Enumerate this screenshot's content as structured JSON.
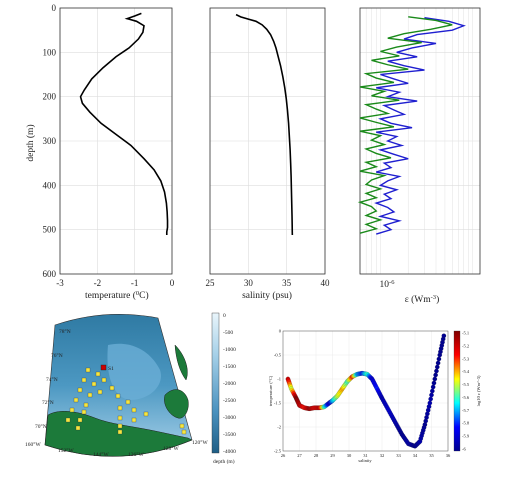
{
  "chart_data": [
    {
      "type": "line",
      "xlabel": "temperature (",
      "xlabel_unit": "C)",
      "ylabel": "depth (m)",
      "xlim": [
        -3,
        0
      ],
      "ylim": [
        0,
        600
      ],
      "x_ticks": [
        "-3",
        "-2",
        "-1",
        "0"
      ],
      "y_ticks": [
        "0",
        "100",
        "200",
        "300",
        "400",
        "500",
        "600"
      ],
      "grid": true,
      "series": [
        {
          "color": "#000000",
          "x": [
            -0.82,
            -1.0,
            -1.2,
            -0.95,
            -0.75,
            -0.78,
            -0.9,
            -1.15,
            -1.5,
            -1.85,
            -2.15,
            -2.35,
            -2.45,
            -2.4,
            -2.2,
            -1.9,
            -1.5,
            -1.1,
            -0.75,
            -0.48,
            -0.3,
            -0.2,
            -0.15,
            -0.13,
            -0.12,
            -0.12,
            -0.14,
            -0.14
          ],
          "y": [
            12,
            18,
            24,
            30,
            40,
            55,
            70,
            90,
            110,
            135,
            160,
            185,
            200,
            215,
            235,
            260,
            285,
            310,
            340,
            365,
            390,
            415,
            440,
            460,
            480,
            495,
            505,
            512
          ]
        }
      ]
    },
    {
      "type": "line",
      "xlabel": "salinity (psu)",
      "xlim": [
        25,
        40
      ],
      "ylim": [
        0,
        600
      ],
      "x_ticks": [
        "25",
        "30",
        "35",
        "40"
      ],
      "grid": true,
      "series": [
        {
          "color": "#000000",
          "x": [
            28.4,
            29.0,
            30.0,
            31.0,
            31.8,
            32.4,
            32.9,
            33.3,
            33.6,
            33.9,
            34.2,
            34.5,
            34.75,
            34.95,
            35.1,
            35.25,
            35.35,
            35.45,
            35.52,
            35.58,
            35.62,
            35.66,
            35.7,
            35.72,
            35.73,
            35.74
          ],
          "y": [
            15,
            20,
            25,
            30,
            38,
            48,
            60,
            75,
            90,
            110,
            130,
            155,
            180,
            205,
            230,
            260,
            290,
            320,
            350,
            380,
            410,
            440,
            470,
            490,
            505,
            512
          ]
        }
      ]
    },
    {
      "type": "line",
      "xlabel": "ε (Wm",
      "xlabel_sup": "-3",
      "xlabel_end": ")",
      "x_tick_label": "10",
      "x_tick_sup": "-6",
      "xscale": "log",
      "ylim": [
        0,
        600
      ],
      "grid": true,
      "series": [
        {
          "color": "#1f1fd0",
          "x": [
            30,
            55,
            80,
            60,
            25,
            18,
            40,
            22,
            15,
            25,
            12,
            18,
            30,
            10,
            14,
            20,
            9,
            16,
            12,
            25,
            11,
            14,
            18,
            10,
            13,
            22,
            9,
            15,
            12,
            17,
            10,
            14,
            20,
            11,
            13,
            9,
            16,
            12,
            10,
            15,
            11,
            13,
            9,
            12,
            14,
            10,
            16,
            11,
            13,
            9
          ],
          "y": [
            22,
            30,
            40,
            50,
            60,
            70,
            80,
            90,
            100,
            110,
            120,
            130,
            140,
            150,
            160,
            170,
            180,
            190,
            200,
            210,
            220,
            230,
            240,
            250,
            260,
            270,
            280,
            290,
            300,
            310,
            320,
            330,
            340,
            350,
            360,
            370,
            380,
            390,
            400,
            410,
            420,
            430,
            440,
            450,
            460,
            470,
            480,
            490,
            500,
            510
          ]
        },
        {
          "color": "#1a8a1a",
          "x": [
            20,
            40,
            60,
            35,
            18,
            12,
            28,
            15,
            10,
            16,
            8,
            12,
            20,
            7,
            9,
            14,
            6,
            11,
            8,
            16,
            7,
            9,
            12,
            6,
            9,
            14,
            6,
            10,
            8,
            11,
            7,
            9,
            13,
            7,
            9,
            6,
            11,
            8,
            7,
            10,
            7,
            9,
            6,
            8,
            9,
            7,
            10,
            7,
            9,
            6
          ],
          "y": [
            20,
            28,
            38,
            48,
            58,
            68,
            78,
            88,
            98,
            108,
            118,
            128,
            138,
            148,
            158,
            168,
            178,
            188,
            198,
            208,
            218,
            228,
            238,
            248,
            258,
            268,
            278,
            288,
            298,
            308,
            318,
            328,
            338,
            348,
            358,
            368,
            378,
            388,
            398,
            408,
            418,
            428,
            438,
            448,
            458,
            468,
            478,
            488,
            498,
            508
          ]
        }
      ]
    },
    {
      "type": "map",
      "lat_labels": [
        "78°N",
        "76°N",
        "74°N",
        "72°N",
        "70°N"
      ],
      "lon_labels": [
        "160°W",
        "152°W",
        "144°W",
        "136°W",
        "128°W",
        "120°W"
      ],
      "highlight_label": "S1",
      "colorbar_label": "depth (m)",
      "colorbar_ticks": [
        "0",
        "-500",
        "-1000",
        "-1500",
        "-2000",
        "-2500",
        "-3000",
        "-3500",
        "-4000"
      ],
      "station_color": "#f5e640",
      "highlight_color": "#cc0000"
    },
    {
      "type": "scatter",
      "xlabel": "salinity",
      "ylabel": "temperature (°C)",
      "xlim": [
        26,
        36
      ],
      "ylim": [
        -2.5,
        0
      ],
      "x_ticks": [
        "26",
        "27",
        "28",
        "29",
        "30",
        "31",
        "32",
        "33",
        "34",
        "35",
        "36"
      ],
      "y_ticks": [
        "0",
        "-0.5",
        "-1",
        "-1.5",
        "-2",
        "-2.5"
      ],
      "colorbar_label": "log10 ε (Wm^-3)",
      "colorbar_ticks": [
        "-5.1",
        "-5.2",
        "-5.3",
        "-5.4",
        "-5.5",
        "-5.6",
        "-5.7",
        "-5.8",
        "-5.9",
        "-6"
      ],
      "points": [
        {
          "x": 26.3,
          "y": -1.0,
          "c": -5.2
        },
        {
          "x": 26.5,
          "y": -1.2,
          "c": -5.5
        },
        {
          "x": 26.8,
          "y": -1.4,
          "c": -5.1
        },
        {
          "x": 27.0,
          "y": -1.55,
          "c": -5.2
        },
        {
          "x": 27.3,
          "y": -1.6,
          "c": -5.3
        },
        {
          "x": 27.6,
          "y": -1.62,
          "c": -5.15
        },
        {
          "x": 27.9,
          "y": -1.6,
          "c": -5.25
        },
        {
          "x": 28.2,
          "y": -1.6,
          "c": -5.2
        },
        {
          "x": 28.5,
          "y": -1.58,
          "c": -5.6
        },
        {
          "x": 28.8,
          "y": -1.5,
          "c": -5.9
        },
        {
          "x": 29.0,
          "y": -1.45,
          "c": -5.7
        },
        {
          "x": 29.3,
          "y": -1.35,
          "c": -5.5
        },
        {
          "x": 29.6,
          "y": -1.2,
          "c": -5.4
        },
        {
          "x": 29.9,
          "y": -1.05,
          "c": -5.6
        },
        {
          "x": 30.2,
          "y": -0.95,
          "c": -5.3
        },
        {
          "x": 30.5,
          "y": -0.9,
          "c": -5.7
        },
        {
          "x": 30.8,
          "y": -0.88,
          "c": -5.8
        },
        {
          "x": 31.1,
          "y": -0.9,
          "c": -5.6
        },
        {
          "x": 31.4,
          "y": -1.0,
          "c": -5.9
        },
        {
          "x": 31.7,
          "y": -1.2,
          "c": -5.8
        },
        {
          "x": 32.0,
          "y": -1.4,
          "c": -5.95
        },
        {
          "x": 32.4,
          "y": -1.65,
          "c": -5.9
        },
        {
          "x": 32.8,
          "y": -1.9,
          "c": -5.95
        },
        {
          "x": 33.2,
          "y": -2.15,
          "c": -6
        },
        {
          "x": 33.6,
          "y": -2.35,
          "c": -5.95
        },
        {
          "x": 34.0,
          "y": -2.4,
          "c": -6
        },
        {
          "x": 34.3,
          "y": -2.3,
          "c": -5.95
        },
        {
          "x": 34.6,
          "y": -1.95,
          "c": -6
        },
        {
          "x": 34.9,
          "y": -1.5,
          "c": -5.95
        },
        {
          "x": 35.2,
          "y": -1.0,
          "c": -6
        },
        {
          "x": 35.5,
          "y": -0.5,
          "c": -6
        },
        {
          "x": 35.75,
          "y": -0.1,
          "c": -6
        }
      ]
    }
  ]
}
